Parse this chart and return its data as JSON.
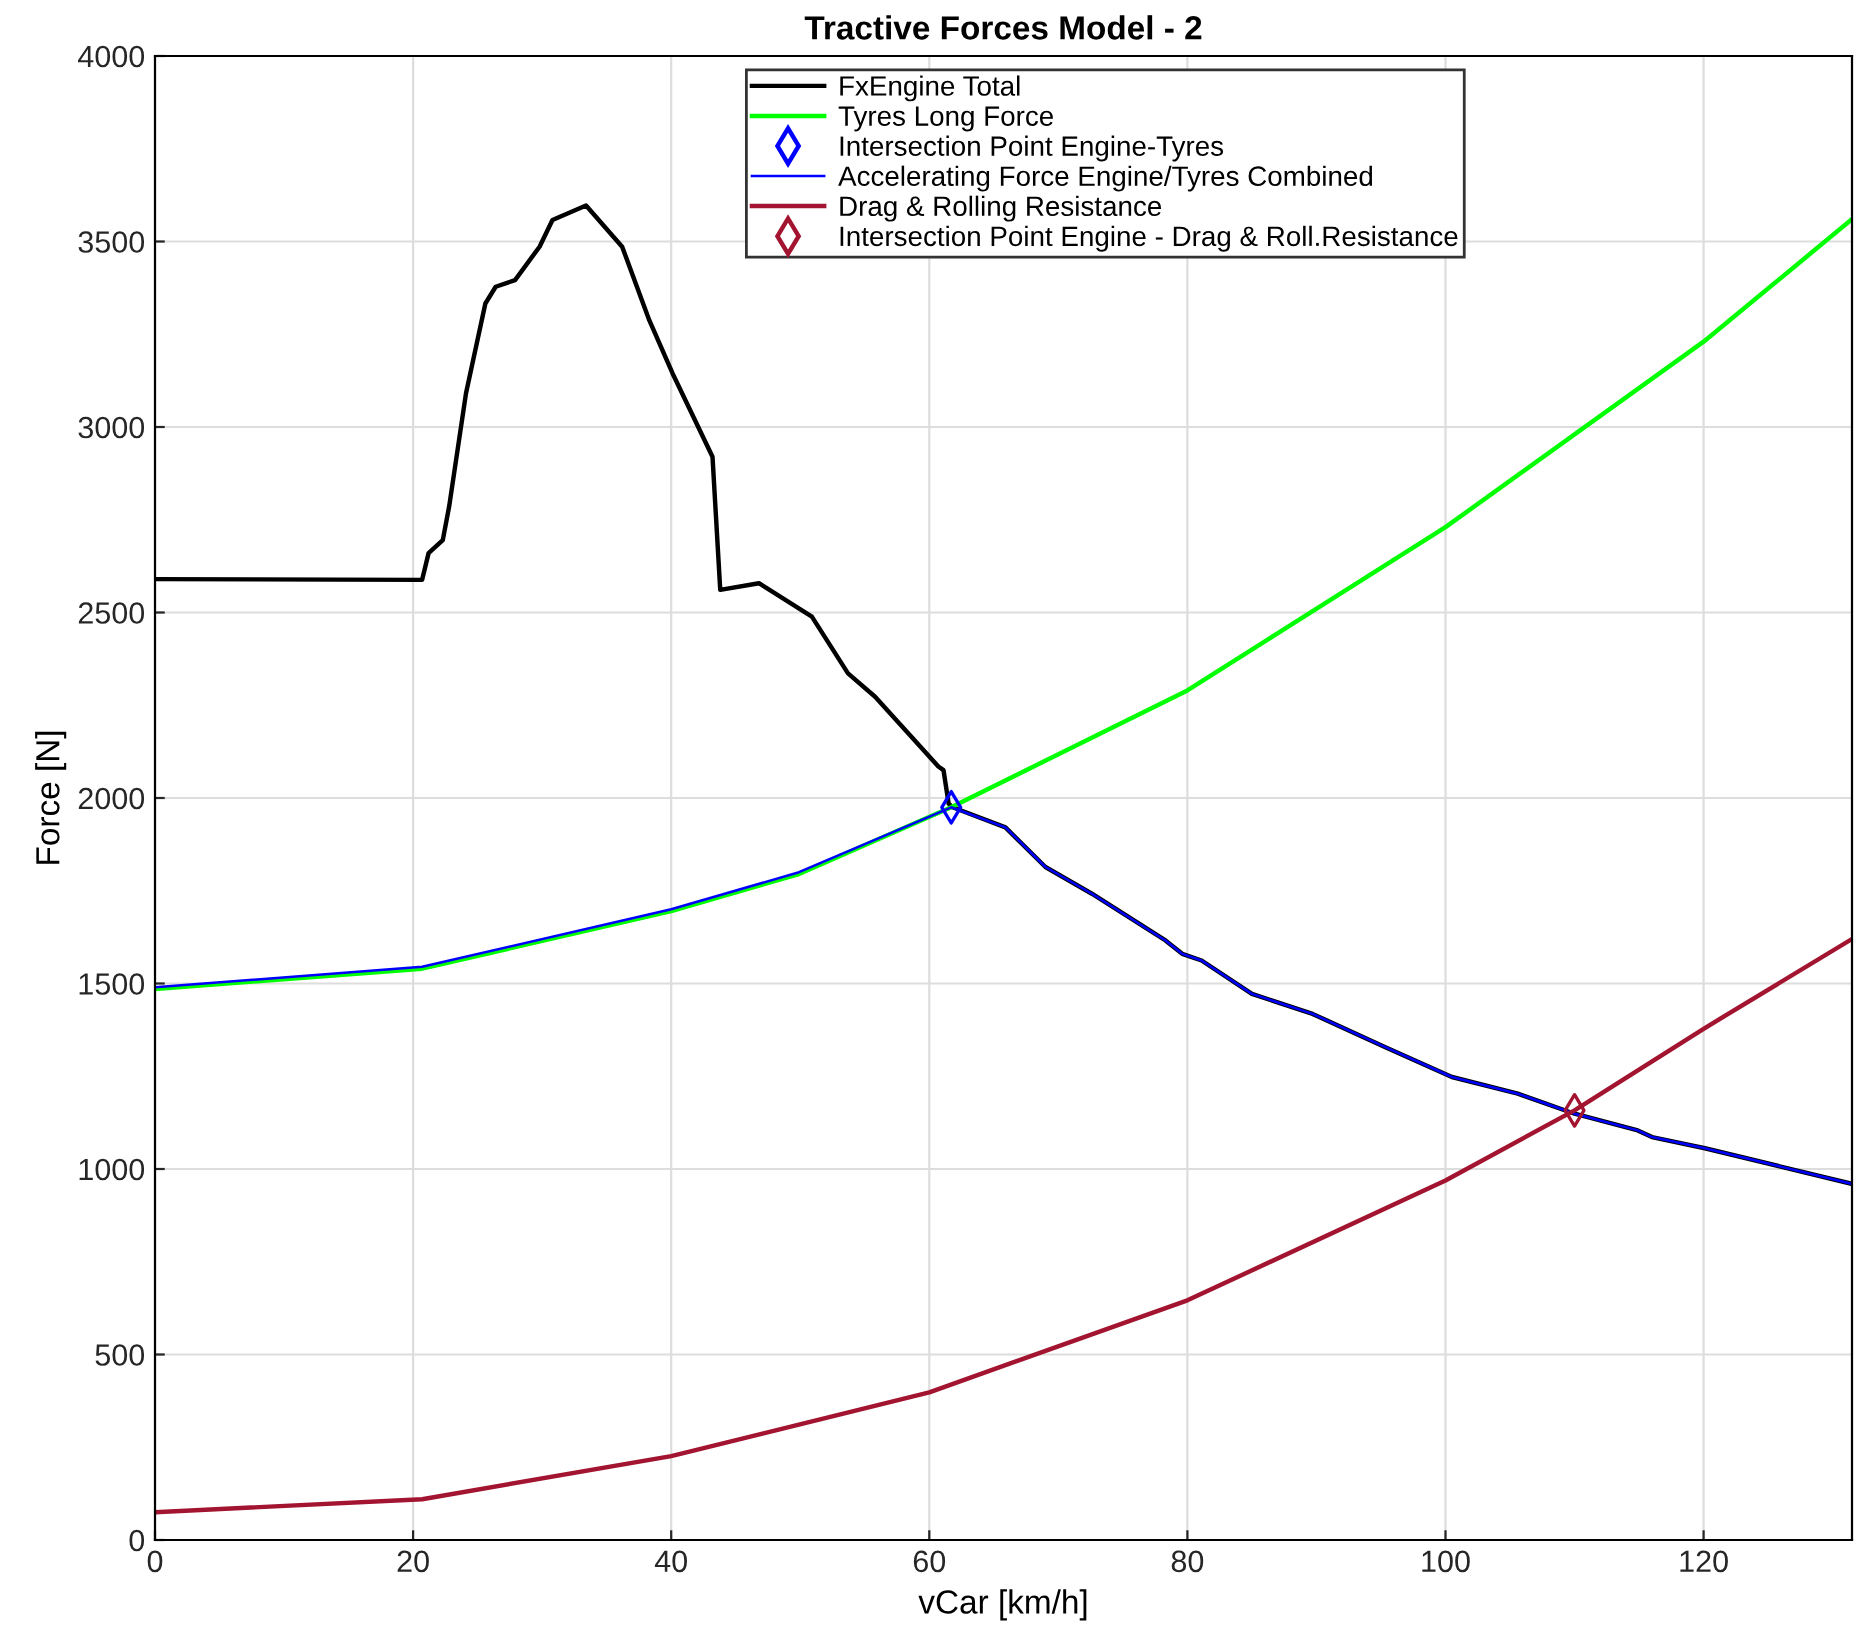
{
  "chart_data": {
    "type": "line",
    "title": "Tractive Forces Model - 2",
    "xlabel": "vCar [km/h]",
    "ylabel": "Force [N]",
    "xlim": [
      0,
      131.5
    ],
    "ylim": [
      0,
      4000
    ],
    "xticks": [
      0,
      20,
      40,
      60,
      80,
      100,
      120
    ],
    "yticks": [
      0,
      500,
      1000,
      1500,
      2000,
      2500,
      3000,
      3500,
      4000
    ],
    "grid": true,
    "legend": "top",
    "series": [
      {
        "name": "FxEngine Total",
        "color": "#000000",
        "x": [
          0,
          20.7,
          21.2,
          22.3,
          22.8,
          24.1,
          25.6,
          26.4,
          27.9,
          29.8,
          30.8,
          33.4,
          36.2,
          38.3,
          40.1,
          43.2,
          43.8,
          46.8,
          50.9,
          53.7,
          55.8,
          60.7,
          61.1,
          61.5,
          61.8,
          65.9,
          69.0,
          72.6,
          78.3,
          79.6,
          81.1,
          85.0,
          89.7,
          95.3,
          100.5,
          105.6,
          110.0,
          114.9,
          116.0,
          120.1,
          131.5
        ],
        "values": [
          2590,
          2588,
          2660,
          2695,
          2787,
          3091,
          3333,
          3378,
          3396,
          3486,
          3558,
          3597,
          3486,
          3288,
          3145,
          2920,
          2561,
          2579,
          2489,
          2336,
          2273,
          2085,
          2075,
          1985,
          1975,
          1921,
          1814,
          1742,
          1616,
          1580,
          1562,
          1472,
          1418,
          1329,
          1248,
          1203,
          1149,
          1104,
          1086,
          1056,
          960
        ]
      },
      {
        "name": "Tyres Long Force",
        "color": "#00ff00",
        "x": [
          0,
          20.7,
          40,
          49.9,
          61.7,
          80,
          100,
          120,
          131.5
        ],
        "values": [
          1485,
          1540,
          1695,
          1795,
          1975,
          2290,
          2730,
          3230,
          3560
        ]
      },
      {
        "name": "Intersection Point Engine-Tyres",
        "color": "#0000ff",
        "type": "scatter",
        "marker": "diamond",
        "x": [
          61.7
        ],
        "values": [
          1975
        ]
      },
      {
        "name": "Accelerating Force Engine/Tyres Combined",
        "color": "#0000ff",
        "x": [
          0,
          20.7,
          40,
          49.9,
          61.7,
          65.9,
          69.0,
          72.6,
          78.3,
          79.6,
          81.1,
          85.0,
          89.7,
          95.3,
          100.5,
          105.6,
          110.0,
          114.9,
          116.0,
          120.1,
          131.5
        ],
        "values": [
          1490,
          1545,
          1700,
          1800,
          1975,
          1921,
          1814,
          1742,
          1616,
          1580,
          1562,
          1472,
          1418,
          1329,
          1248,
          1203,
          1149,
          1104,
          1086,
          1056,
          960
        ]
      },
      {
        "name": "Drag & Rolling Resistance",
        "color": "#a2142f",
        "x": [
          0,
          20.7,
          40,
          60,
          80,
          100,
          110,
          120,
          131.5
        ],
        "values": [
          75,
          110,
          226,
          398,
          646,
          969,
          1158,
          1378,
          1620
        ]
      },
      {
        "name": "Intersection Point Engine - Drag & Roll.Resistance",
        "color": "#a2142f",
        "type": "scatter",
        "marker": "diamond",
        "x": [
          110.0
        ],
        "values": [
          1158
        ]
      }
    ]
  }
}
